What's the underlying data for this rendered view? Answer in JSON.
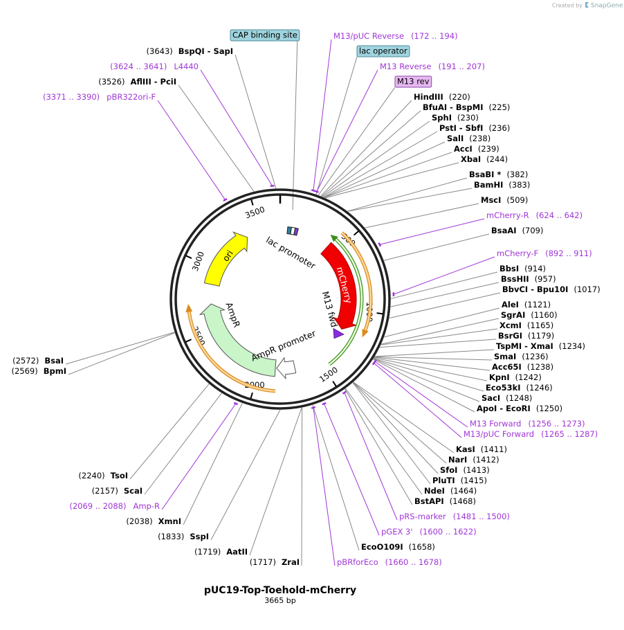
{
  "header": {
    "created_by": "Created by",
    "brand": "SnapGene"
  },
  "map": {
    "name": "pUC19-Top-Toehold-mCherry",
    "length": "3665 bp",
    "ticks": [
      "500",
      "1000",
      "1500",
      "2000",
      "2500",
      "3000",
      "3500"
    ],
    "features": [
      "lac promoter",
      "mCherry",
      "M13 fwd",
      "AmpR",
      "AmpR promoter",
      "ori"
    ],
    "boxed_labels": [
      "CAP binding site",
      "lac operator",
      "M13 rev"
    ],
    "sites": [
      {
        "name": "BspQI - SapI",
        "position": "(3643)"
      },
      {
        "name": "AflIII - PciI",
        "position": "(3526)"
      },
      {
        "name": "BsaI",
        "position": "(2572)"
      },
      {
        "name": "BpmI",
        "position": "(2569)"
      },
      {
        "name": "TsoI",
        "position": "(2240)"
      },
      {
        "name": "ScaI",
        "position": "(2157)"
      },
      {
        "name": "XmnI",
        "position": "(2038)"
      },
      {
        "name": "SspI",
        "position": "(1833)"
      },
      {
        "name": "AatII",
        "position": "(1719)"
      },
      {
        "name": "ZraI",
        "position": "(1717)"
      },
      {
        "name": "HindIII",
        "position": "(220)"
      },
      {
        "name": "BfuAI - BspMI",
        "position": "(225)"
      },
      {
        "name": "SphI",
        "position": "(230)"
      },
      {
        "name": "PstI - SbfI",
        "position": "(236)"
      },
      {
        "name": "SalI",
        "position": "(238)"
      },
      {
        "name": "AccI",
        "position": "(239)"
      },
      {
        "name": "XbaI",
        "position": "(244)"
      },
      {
        "name": "BsaBI *",
        "position": "(382)"
      },
      {
        "name": "BamHI",
        "position": "(383)"
      },
      {
        "name": "MscI",
        "position": "(509)"
      },
      {
        "name": "BsaAI",
        "position": "(709)"
      },
      {
        "name": "BbsI",
        "position": "(914)"
      },
      {
        "name": "BssHII",
        "position": "(957)"
      },
      {
        "name": "BbvCI - Bpu10I",
        "position": "(1017)"
      },
      {
        "name": "AleI",
        "position": "(1121)"
      },
      {
        "name": "SgrAI",
        "position": "(1160)"
      },
      {
        "name": "XcmI",
        "position": "(1165)"
      },
      {
        "name": "BsrGI",
        "position": "(1179)"
      },
      {
        "name": "TspMI - XmaI",
        "position": "(1234)"
      },
      {
        "name": "SmaI",
        "position": "(1236)"
      },
      {
        "name": "Acc65I",
        "position": "(1238)"
      },
      {
        "name": "KpnI",
        "position": "(1242)"
      },
      {
        "name": "Eco53kI",
        "position": "(1246)"
      },
      {
        "name": "SacI",
        "position": "(1248)"
      },
      {
        "name": "ApoI - EcoRI",
        "position": "(1250)"
      },
      {
        "name": "KasI",
        "position": "(1411)"
      },
      {
        "name": "NarI",
        "position": "(1412)"
      },
      {
        "name": "SfoI",
        "position": "(1413)"
      },
      {
        "name": "PluTI",
        "position": "(1415)"
      },
      {
        "name": "NdeI",
        "position": "(1464)"
      },
      {
        "name": "BstAPI",
        "position": "(1468)"
      },
      {
        "name": "EcoO109I",
        "position": "(1658)"
      }
    ],
    "primers": [
      {
        "name": "L4440",
        "range": "(3624 .. 3641)"
      },
      {
        "name": "pBR322ori-F",
        "range": "(3371 .. 3390)"
      },
      {
        "name": "Amp-R",
        "range": "(2069 .. 2088)"
      },
      {
        "name": "M13/pUC Reverse",
        "range": "(172 .. 194)"
      },
      {
        "name": "M13 Reverse",
        "range": "(191 .. 207)"
      },
      {
        "name": "mCherry-R",
        "range": "(624 .. 642)"
      },
      {
        "name": "mCherry-F",
        "range": "(892 .. 911)"
      },
      {
        "name": "M13 Forward",
        "range": "(1256 .. 1273)"
      },
      {
        "name": "M13/pUC Forward",
        "range": "(1265 .. 1287)"
      },
      {
        "name": "pRS-marker",
        "range": "(1481 .. 1500)"
      },
      {
        "name": "pGEX 3'",
        "range": "(1600 .. 1622)"
      },
      {
        "name": "pBRforEco",
        "range": "(1660 .. 1678)"
      }
    ]
  }
}
